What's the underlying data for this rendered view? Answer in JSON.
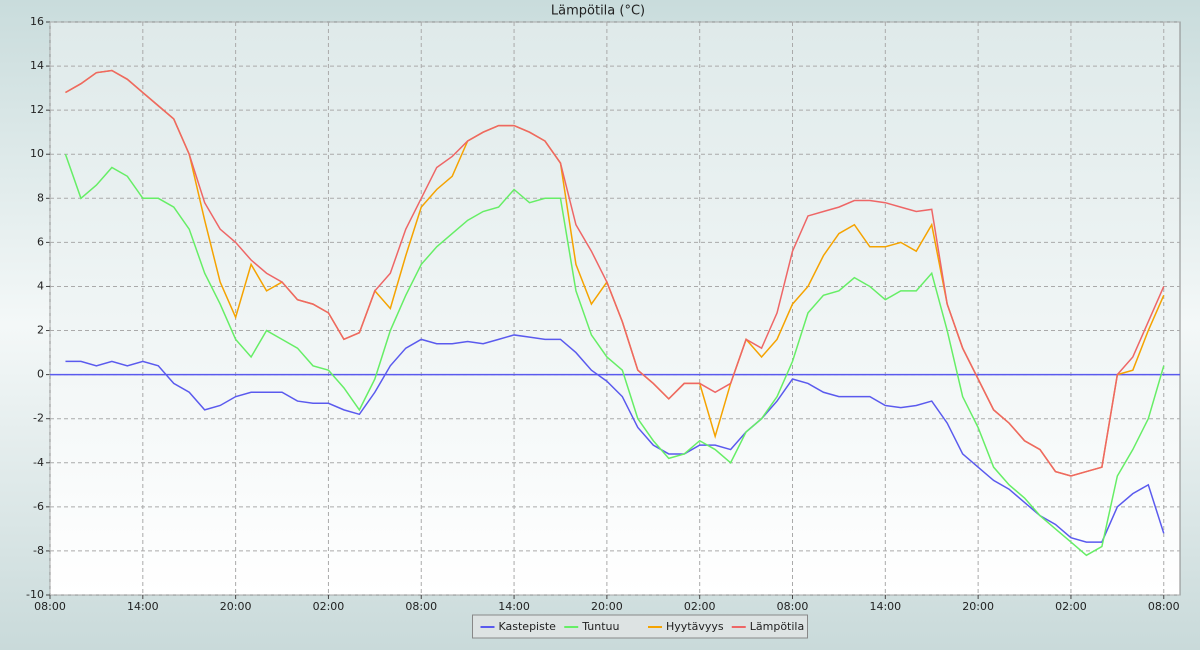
{
  "chart_data": {
    "type": "line",
    "title": "Lämpötila (°C)",
    "x": [
      1,
      2,
      3,
      4,
      5,
      6,
      7,
      8,
      9,
      10,
      11,
      12,
      13,
      14,
      15,
      16,
      17,
      18,
      19,
      20,
      21,
      22,
      23,
      24,
      25,
      26,
      27,
      28,
      29,
      30,
      31,
      32,
      33,
      34,
      35,
      36,
      37,
      38,
      39,
      40,
      41,
      42,
      43,
      44,
      45,
      46,
      47,
      48,
      49,
      50,
      51,
      52,
      53,
      54,
      55,
      56,
      57,
      58,
      59,
      60,
      61,
      62,
      63,
      64,
      65,
      66,
      67,
      68,
      69,
      70,
      71,
      72
    ],
    "xlim": [
      0,
      73.05
    ],
    "xticks": [
      {
        "value": 0,
        "label": "08:00"
      },
      {
        "value": 6,
        "label": "14:00"
      },
      {
        "value": 12,
        "label": "20:00"
      },
      {
        "value": 18,
        "label": "02:00"
      },
      {
        "value": 24,
        "label": "08:00"
      },
      {
        "value": 30,
        "label": "14:00"
      },
      {
        "value": 36,
        "label": "20:00"
      },
      {
        "value": 42,
        "label": "02:00"
      },
      {
        "value": 48,
        "label": "08:00"
      },
      {
        "value": 54,
        "label": "14:00"
      },
      {
        "value": 60,
        "label": "20:00"
      },
      {
        "value": 66,
        "label": "02:00"
      },
      {
        "value": 72,
        "label": "08:00"
      }
    ],
    "ylim": [
      -10,
      16
    ],
    "yticks": [
      -10,
      -8,
      -6,
      -4,
      -2,
      0,
      2,
      4,
      6,
      8,
      10,
      12,
      14,
      16
    ],
    "grid": true,
    "legend": "bottom",
    "series": [
      {
        "name": "Kastepiste",
        "color": "#5a5aee",
        "values": [
          0.6,
          0.6,
          0.4,
          0.6,
          0.4,
          0.6,
          0.4,
          -0.4,
          -0.8,
          -1.6,
          -1.4,
          -1.0,
          -0.8,
          -0.8,
          -0.8,
          -1.2,
          -1.3,
          -1.3,
          -1.6,
          -1.8,
          -0.8,
          0.4,
          1.2,
          1.6,
          1.4,
          1.4,
          1.5,
          1.4,
          1.6,
          1.8,
          1.7,
          1.6,
          1.6,
          1.0,
          0.2,
          -0.3,
          -1.0,
          -2.4,
          -3.2,
          -3.6,
          -3.6,
          -3.2,
          -3.2,
          -3.4,
          -2.6,
          -2.0,
          -1.2,
          -0.2,
          -0.4,
          -0.8,
          -1.0,
          -1.0,
          -1.0,
          -1.4,
          -1.5,
          -1.4,
          -1.2,
          -2.2,
          -3.6,
          -4.2,
          -4.8,
          -5.2,
          -5.8,
          -6.4,
          -6.8,
          -7.4,
          -7.6,
          -7.6,
          -6.0,
          -5.4,
          -5.0,
          -7.2
        ]
      },
      {
        "name": "Tuntuu",
        "color": "#66ee66",
        "values": [
          10.0,
          8.0,
          8.6,
          9.4,
          9.0,
          8.0,
          8.0,
          7.6,
          6.6,
          4.6,
          3.2,
          1.6,
          0.8,
          2.0,
          1.6,
          1.2,
          0.4,
          0.2,
          -0.6,
          -1.6,
          -0.2,
          2.0,
          3.6,
          5.0,
          5.8,
          6.4,
          7.0,
          7.4,
          7.6,
          8.4,
          7.8,
          8.0,
          8.0,
          3.8,
          1.8,
          0.8,
          0.2,
          -2.0,
          -3.0,
          -3.8,
          -3.6,
          -3.0,
          -3.4,
          -4.0,
          -2.6,
          -2.0,
          -1.0,
          0.6,
          2.8,
          3.6,
          3.8,
          4.4,
          4.0,
          3.4,
          3.8,
          3.8,
          4.6,
          2.0,
          -1.0,
          -2.4,
          -4.2,
          -5.0,
          -5.6,
          -6.4,
          -7.0,
          -7.6,
          -8.2,
          -7.8,
          -4.6,
          -3.4,
          -2.0,
          0.4
        ]
      },
      {
        "name": "Hyytävyys",
        "color": "#f5a300",
        "values": [
          12.8,
          13.2,
          13.7,
          13.8,
          13.4,
          12.8,
          12.2,
          11.6,
          10.0,
          7.0,
          4.2,
          2.6,
          5.0,
          3.8,
          4.2,
          3.4,
          3.2,
          2.8,
          1.6,
          1.9,
          3.8,
          3.0,
          5.4,
          7.6,
          8.4,
          9.0,
          10.6,
          11.0,
          11.3,
          11.3,
          11.0,
          10.6,
          9.6,
          5.0,
          3.2,
          4.2,
          2.4,
          0.2,
          -0.4,
          -1.1,
          -0.4,
          -0.4,
          -2.8,
          -0.4,
          1.6,
          0.8,
          1.6,
          3.2,
          4.0,
          5.4,
          6.4,
          6.8,
          5.8,
          5.8,
          6.0,
          5.6,
          6.8,
          3.2,
          1.2,
          -0.2,
          -1.6,
          -2.2,
          -3.0,
          -3.4,
          -4.4,
          -4.6,
          -4.4,
          -4.2,
          0.0,
          0.2,
          2.0,
          3.6
        ]
      },
      {
        "name": "Lämpötila",
        "color": "#ee6666",
        "values": [
          12.8,
          13.2,
          13.7,
          13.8,
          13.4,
          12.8,
          12.2,
          11.6,
          10.0,
          7.8,
          6.6,
          6.0,
          5.2,
          4.6,
          4.2,
          3.4,
          3.2,
          2.8,
          1.6,
          1.9,
          3.8,
          4.6,
          6.6,
          8.0,
          9.4,
          9.9,
          10.6,
          11.0,
          11.3,
          11.3,
          11.0,
          10.6,
          9.6,
          6.8,
          5.6,
          4.2,
          2.4,
          0.2,
          -0.4,
          -1.1,
          -0.4,
          -0.4,
          -0.8,
          -0.4,
          1.6,
          1.2,
          2.8,
          5.6,
          7.2,
          7.4,
          7.6,
          7.9,
          7.9,
          7.8,
          7.6,
          7.4,
          7.5,
          3.2,
          1.2,
          -0.2,
          -1.6,
          -2.2,
          -3.0,
          -3.4,
          -4.4,
          -4.6,
          -4.4,
          -4.2,
          0.0,
          0.8,
          2.4,
          4.0
        ]
      }
    ]
  }
}
